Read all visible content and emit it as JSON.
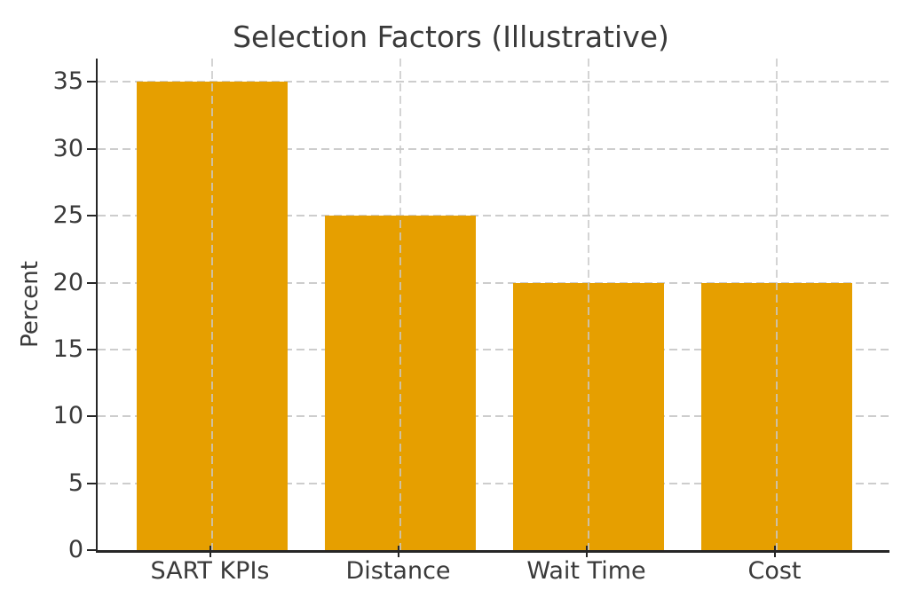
{
  "chart_data": {
    "type": "bar",
    "title": "Selection Factors (Illustrative)",
    "xlabel": "",
    "ylabel": "Percent",
    "categories": [
      "SART KPIs",
      "Distance",
      "Wait Time",
      "Cost"
    ],
    "values": [
      35,
      25,
      20,
      20
    ],
    "yticks": [
      0,
      5,
      10,
      15,
      20,
      25,
      30,
      35
    ],
    "ylim": [
      0,
      36.75
    ],
    "legend_position": "none",
    "grid": "dashed, horizontal and vertical",
    "bar_color": "#E69F00",
    "axis_color": "#262626",
    "grid_color": "#cdcdcd",
    "text_color": "#3a3a3a"
  }
}
